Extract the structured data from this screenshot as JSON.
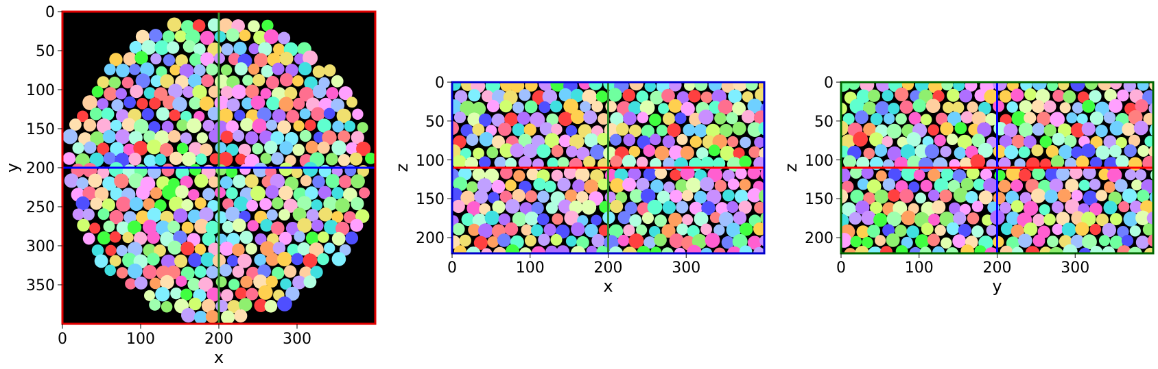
{
  "panels": [
    {
      "id": "xy",
      "xlabel": "x",
      "ylabel": "y",
      "x_ticks": [
        "0",
        "100",
        "200",
        "300"
      ],
      "y_ticks": [
        "0",
        "50",
        "100",
        "150",
        "200",
        "250",
        "300",
        "350"
      ],
      "x_range": [
        0,
        400
      ],
      "y_range": [
        0,
        400
      ],
      "frame_color": "#e00000",
      "vertical_line": {
        "value": 200,
        "color": "#2e8b2e"
      },
      "horizontal_line": {
        "value": 200,
        "color": "#0000ff"
      },
      "shape": "circle"
    },
    {
      "id": "xz",
      "xlabel": "x",
      "ylabel": "z",
      "x_ticks": [
        "0",
        "100",
        "200",
        "300"
      ],
      "y_ticks": [
        "0",
        "50",
        "100",
        "150",
        "200"
      ],
      "x_range": [
        0,
        400
      ],
      "y_range": [
        0,
        220
      ],
      "frame_color": "#0000cc",
      "vertical_line": {
        "value": 200,
        "color": "#2e8b2e"
      },
      "horizontal_line": {
        "value": 110,
        "color": "#ff0000"
      },
      "shape": "rect"
    },
    {
      "id": "yz",
      "xlabel": "y",
      "ylabel": "z",
      "x_ticks": [
        "0",
        "100",
        "200",
        "300"
      ],
      "y_ticks": [
        "0",
        "50",
        "100",
        "150",
        "200"
      ],
      "x_range": [
        0,
        400
      ],
      "y_range": [
        0,
        220
      ],
      "frame_color": "#006600",
      "vertical_line": {
        "value": 200,
        "color": "#0000ff"
      },
      "horizontal_line": {
        "value": 110,
        "color": "#ff0000"
      },
      "shape": "rect"
    }
  ],
  "grain_palette": [
    "#ff6f8f",
    "#8fef6f",
    "#6fd0ff",
    "#ffd04f",
    "#c98fff",
    "#6f7fff",
    "#ff9f5f",
    "#5fffcf",
    "#ff5fd0",
    "#d0ff6f",
    "#9fffaf",
    "#ffafd9",
    "#7fefff",
    "#f0e06f",
    "#ff4040",
    "#40ff40",
    "#4f4fff",
    "#ffcf9f",
    "#af6fff",
    "#6fff9f",
    "#ffa0ff",
    "#a0c0ff",
    "#e0ffb0",
    "#ff8080",
    "#40e0e0",
    "#ffe0b0",
    "#b0ffe0",
    "#c0a0ff"
  ]
}
